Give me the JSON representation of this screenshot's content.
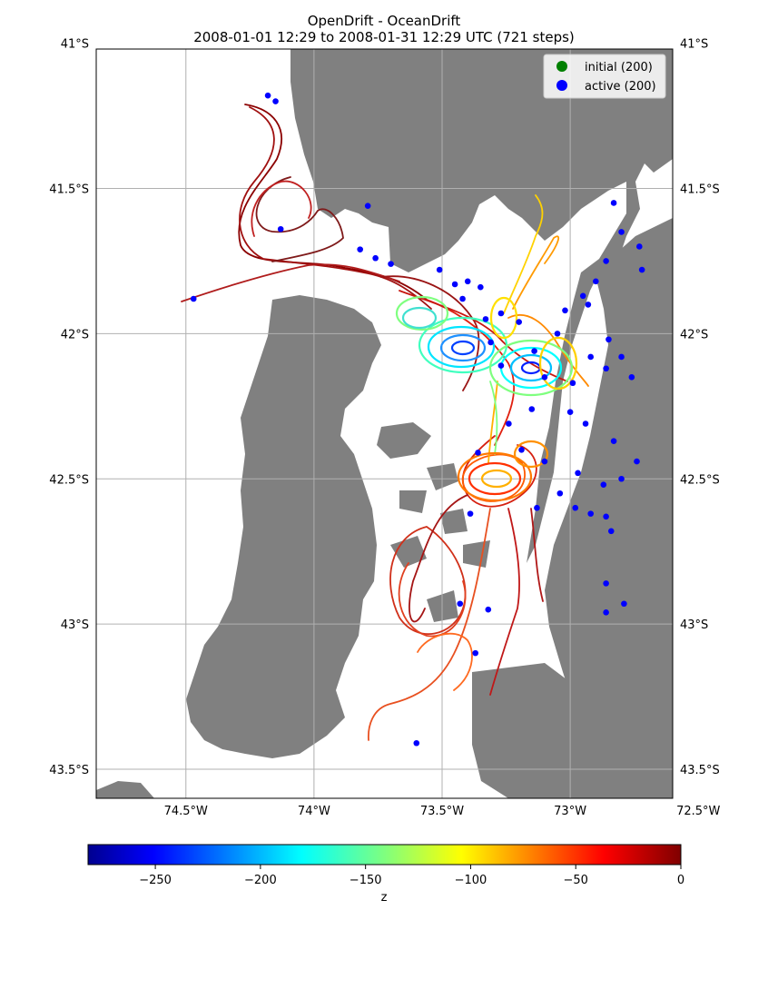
{
  "chart_data": {
    "type": "map-trajectories",
    "title": "OpenDrift - OceanDrift",
    "subtitle": "2008-01-01 12:29 to 2008-01-31 12:29 UTC (721 steps)",
    "xlim": [
      -74.85,
      -72.6
    ],
    "ylim": [
      -43.6,
      -41.02
    ],
    "x_ticks": [
      -74.5,
      -74.0,
      -73.5,
      -73.0,
      -72.5
    ],
    "x_tick_labels": [
      "74.5°W",
      "74°W",
      "73.5°W",
      "73°W",
      "72.5°W"
    ],
    "y_ticks": [
      -41.0,
      -41.5,
      -42.0,
      -42.5,
      -43.0,
      -43.5
    ],
    "y_tick_labels": [
      "41°S",
      "41.5°S",
      "42°S",
      "42.5°S",
      "43°S",
      "43.5°S"
    ],
    "grid": true,
    "legend_position": "top-right",
    "legend": [
      {
        "label": "initial (200)",
        "color": "#008000"
      },
      {
        "label": "active (200)",
        "color": "#0000ff"
      }
    ],
    "land_color": "#808080",
    "ocean_color": "#ffffff",
    "colorbar": {
      "label": "z",
      "range": [
        -282,
        0
      ],
      "ticks": [
        -250,
        -200,
        -150,
        -100,
        -50,
        0
      ],
      "tick_labels": [
        "−250",
        "−200",
        "−150",
        "−100",
        "−50",
        "0"
      ],
      "colormap": "jet"
    },
    "active_points": [
      [
        -74.47,
        -41.88
      ],
      [
        -74.18,
        -41.18
      ],
      [
        -74.15,
        -41.2
      ],
      [
        -74.13,
        -41.64
      ],
      [
        -73.79,
        -41.56
      ],
      [
        -73.82,
        -41.71
      ],
      [
        -73.76,
        -41.74
      ],
      [
        -73.7,
        -41.76
      ],
      [
        -73.51,
        -41.78
      ],
      [
        -73.45,
        -41.83
      ],
      [
        -73.4,
        -41.82
      ],
      [
        -73.35,
        -41.84
      ],
      [
        -73.42,
        -41.88
      ],
      [
        -73.33,
        -41.95
      ],
      [
        -73.27,
        -41.93
      ],
      [
        -73.2,
        -41.96
      ],
      [
        -73.31,
        -42.03
      ],
      [
        -73.27,
        -42.11
      ],
      [
        -73.14,
        -42.06
      ],
      [
        -73.05,
        -42.0
      ],
      [
        -73.1,
        -42.15
      ],
      [
        -72.99,
        -42.17
      ],
      [
        -72.92,
        -42.08
      ],
      [
        -72.86,
        -42.12
      ],
      [
        -72.8,
        -42.08
      ],
      [
        -72.76,
        -42.15
      ],
      [
        -72.85,
        -42.02
      ],
      [
        -72.93,
        -41.9
      ],
      [
        -72.9,
        -41.82
      ],
      [
        -72.86,
        -41.75
      ],
      [
        -72.8,
        -41.65
      ],
      [
        -72.73,
        -41.7
      ],
      [
        -72.83,
        -41.55
      ],
      [
        -72.72,
        -41.78
      ],
      [
        -72.95,
        -41.87
      ],
      [
        -73.02,
        -41.92
      ],
      [
        -73.0,
        -42.27
      ],
      [
        -72.94,
        -42.31
      ],
      [
        -73.15,
        -42.26
      ],
      [
        -73.24,
        -42.31
      ],
      [
        -73.36,
        -42.41
      ],
      [
        -73.1,
        -42.44
      ],
      [
        -73.19,
        -42.4
      ],
      [
        -72.97,
        -42.48
      ],
      [
        -72.87,
        -42.52
      ],
      [
        -72.8,
        -42.5
      ],
      [
        -72.83,
        -42.37
      ],
      [
        -72.74,
        -42.44
      ],
      [
        -72.92,
        -42.62
      ],
      [
        -72.98,
        -42.6
      ],
      [
        -73.04,
        -42.55
      ],
      [
        -73.13,
        -42.6
      ],
      [
        -72.86,
        -42.63
      ],
      [
        -72.84,
        -42.68
      ],
      [
        -73.39,
        -42.62
      ],
      [
        -73.43,
        -42.93
      ],
      [
        -73.32,
        -42.95
      ],
      [
        -73.37,
        -43.1
      ],
      [
        -72.86,
        -42.86
      ],
      [
        -72.79,
        -42.93
      ],
      [
        -72.86,
        -42.96
      ],
      [
        -73.6,
        -43.41
      ]
    ]
  }
}
